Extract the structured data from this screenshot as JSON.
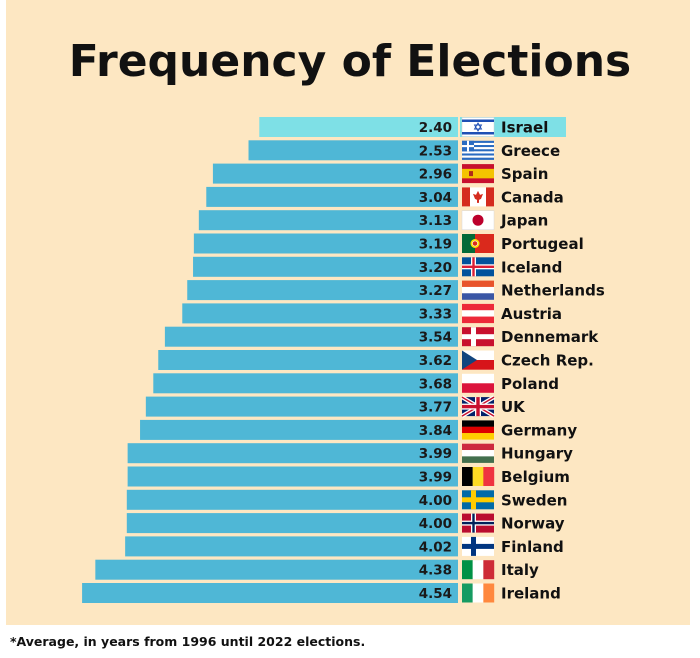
{
  "title": "Frequency of Elections",
  "footnote": "*Average, in years from 1996 until 2022 elections.",
  "colors": {
    "background": "#fde7c2",
    "bar": "#4fb7d6",
    "bar_highlight": "#7ee0e6"
  },
  "chart_data": {
    "type": "bar",
    "orientation": "horizontal",
    "title": "Frequency of Elections",
    "categories": [
      "Israel",
      "Greece",
      "Spain",
      "Canada",
      "Japan",
      "Portugeal",
      "Iceland",
      "Netherlands",
      "Austria",
      "Dennemark",
      "Czech Rep.",
      "Poland",
      "UK",
      "Germany",
      "Hungary",
      "Belgium",
      "Sweden",
      "Norway",
      "Finland",
      "Italy",
      "Ireland"
    ],
    "values": [
      2.4,
      2.53,
      2.96,
      3.04,
      3.13,
      3.19,
      3.2,
      3.27,
      3.33,
      3.54,
      3.62,
      3.68,
      3.77,
      3.84,
      3.99,
      3.99,
      4.0,
      4.0,
      4.02,
      4.38,
      4.54
    ],
    "value_labels": [
      "2.40",
      "2.53",
      "2.96",
      "3.04",
      "3.13",
      "3.19",
      "3.20",
      "3.27",
      "3.33",
      "3.54",
      "3.62",
      "3.68",
      "3.77",
      "3.84",
      "3.99",
      "3.99",
      "4.00",
      "4.00",
      "4.02",
      "4.38",
      "4.54"
    ],
    "flag_icons": [
      "israel-flag-icon",
      "greece-flag-icon",
      "spain-flag-icon",
      "canada-flag-icon",
      "japan-flag-icon",
      "portugal-flag-icon",
      "iceland-flag-icon",
      "netherlands-flag-icon",
      "austria-flag-icon",
      "denmark-flag-icon",
      "czech-flag-icon",
      "poland-flag-icon",
      "uk-flag-icon",
      "germany-flag-icon",
      "hungary-flag-icon",
      "belgium-flag-icon",
      "sweden-flag-icon",
      "norway-flag-icon",
      "finland-flag-icon",
      "italy-flag-icon",
      "ireland-flag-icon"
    ],
    "highlighted_category": "Israel",
    "bars_extend": "leftward",
    "grid": false,
    "legend": "none"
  }
}
